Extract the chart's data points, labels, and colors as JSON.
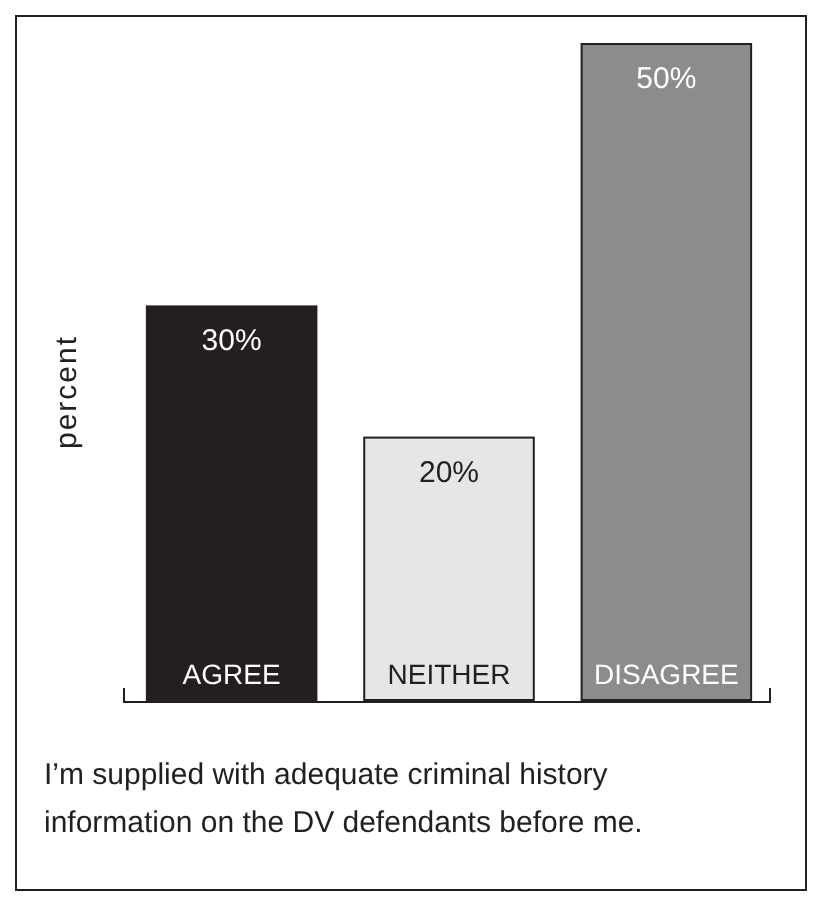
{
  "chart_data": {
    "type": "bar",
    "ylim": [
      0,
      50
    ],
    "ylabel": "percent",
    "categories": [
      "AGREE",
      "NEITHER",
      "DISAGREE"
    ],
    "values": [
      30,
      20,
      50
    ],
    "colors": [
      "#231f20",
      "#e6e6e6",
      "#8c8c8c"
    ],
    "value_labels": [
      "30%",
      "20%",
      "50%"
    ],
    "annotations": [
      "I’m supplied with adequate criminal history information on the DV defendants before me."
    ]
  }
}
